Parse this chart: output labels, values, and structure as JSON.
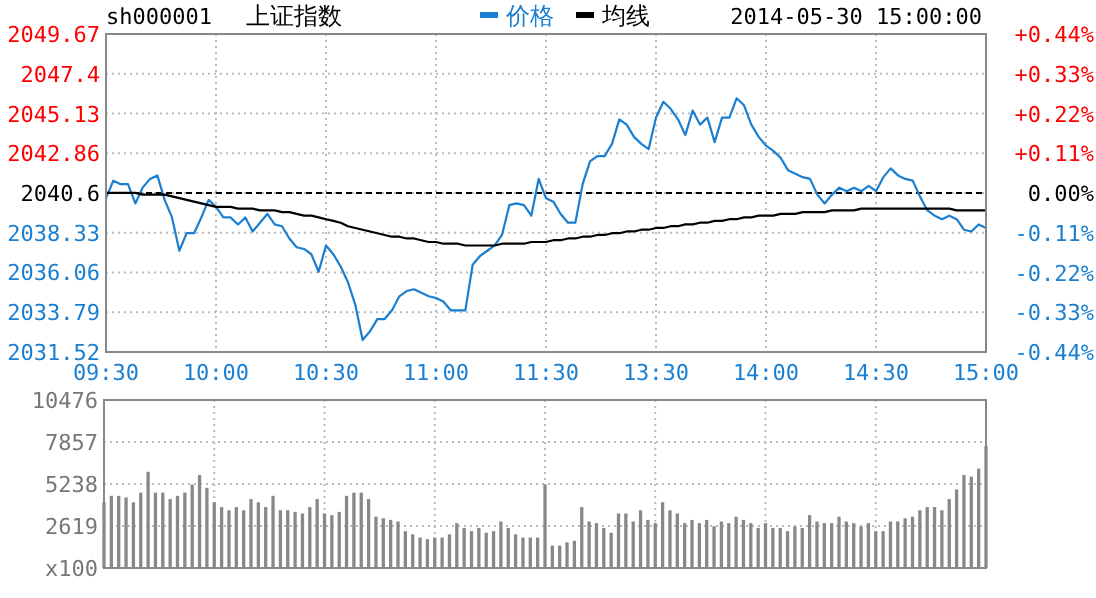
{
  "chart_data": [
    {
      "type": "line",
      "title": "上证指数",
      "subtitle": "sh000001",
      "annotations": [
        "2014-05-30 15:00:00"
      ],
      "categories": [
        "09:30",
        null,
        null,
        null,
        null,
        null,
        null,
        null,
        null,
        null,
        null,
        null,
        null,
        null,
        null,
        "10:00",
        null,
        null,
        null,
        null,
        null,
        null,
        null,
        null,
        null,
        null,
        null,
        null,
        null,
        null,
        "10:30",
        null,
        null,
        null,
        null,
        null,
        null,
        null,
        null,
        null,
        null,
        null,
        null,
        null,
        null,
        "11:00",
        null,
        null,
        null,
        null,
        null,
        null,
        null,
        null,
        null,
        null,
        null,
        null,
        null,
        null,
        "11:30",
        null,
        null,
        null,
        null,
        null,
        null,
        null,
        null,
        null,
        null,
        null,
        null,
        null,
        null,
        "13:30",
        null,
        null,
        null,
        null,
        null,
        null,
        null,
        null,
        null,
        null,
        null,
        null,
        null,
        null,
        "14:00",
        null,
        null,
        null,
        null,
        null,
        null,
        null,
        null,
        null,
        null,
        null,
        null,
        null,
        null,
        "14:30",
        null,
        null,
        null,
        null,
        null,
        null,
        null,
        null,
        null,
        null,
        null,
        null,
        null,
        null,
        "15:00"
      ],
      "series": [
        {
          "name": "价格",
          "color": "#1a7fd0",
          "values": [
            2040.3,
            2041.3,
            2041.1,
            2041.1,
            2040.0,
            2040.9,
            2041.4,
            2041.6,
            2040.2,
            2039.2,
            2037.3,
            2038.3,
            2038.3,
            2039.2,
            2040.2,
            2039.8,
            2039.2,
            2039.2,
            2038.8,
            2039.2,
            2038.4,
            2038.9,
            2039.4,
            2038.8,
            2038.7,
            2038.0,
            2037.5,
            2037.4,
            2037.1,
            2036.1,
            2037.6,
            2037.1,
            2036.4,
            2035.5,
            2034.2,
            2032.2,
            2032.7,
            2033.4,
            2033.4,
            2033.9,
            2034.7,
            2035.0,
            2035.1,
            2034.9,
            2034.7,
            2034.6,
            2034.4,
            2033.9,
            2033.9,
            2033.9,
            2036.5,
            2037.0,
            2037.3,
            2037.6,
            2038.2,
            2039.9,
            2040.0,
            2039.9,
            2039.3,
            2041.4,
            2040.3,
            2040.1,
            2039.4,
            2038.9,
            2038.9,
            2041.1,
            2042.4,
            2042.7,
            2042.7,
            2043.4,
            2044.8,
            2044.5,
            2043.8,
            2043.4,
            2043.1,
            2044.9,
            2045.8,
            2045.4,
            2044.8,
            2043.9,
            2045.3,
            2044.5,
            2044.9,
            2043.5,
            2044.9,
            2044.9,
            2046.0,
            2045.6,
            2044.5,
            2043.8,
            2043.3,
            2043.0,
            2042.6,
            2041.9,
            2041.7,
            2041.5,
            2041.4,
            2040.5,
            2040.0,
            2040.5,
            2040.9,
            2040.7,
            2040.9,
            2040.7,
            2041.0,
            2040.7,
            2041.5,
            2042.0,
            2041.6,
            2041.4,
            2041.3,
            2040.4,
            2039.6,
            2039.3,
            2039.1,
            2039.3,
            2039.1,
            2038.5,
            2038.4,
            2038.8,
            2038.6
          ]
        },
        {
          "name": "均线",
          "color": "#000000",
          "values": [
            2040.6,
            2040.6,
            2040.6,
            2040.6,
            2040.6,
            2040.5,
            2040.5,
            2040.5,
            2040.5,
            2040.4,
            2040.3,
            2040.2,
            2040.1,
            2040.0,
            2039.9,
            2039.8,
            2039.8,
            2039.8,
            2039.7,
            2039.7,
            2039.7,
            2039.6,
            2039.6,
            2039.6,
            2039.5,
            2039.5,
            2039.4,
            2039.3,
            2039.3,
            2039.2,
            2039.1,
            2039.0,
            2038.9,
            2038.7,
            2038.6,
            2038.5,
            2038.4,
            2038.3,
            2038.2,
            2038.1,
            2038.1,
            2038.0,
            2038.0,
            2037.9,
            2037.8,
            2037.8,
            2037.7,
            2037.7,
            2037.7,
            2037.6,
            2037.6,
            2037.6,
            2037.6,
            2037.6,
            2037.7,
            2037.7,
            2037.7,
            2037.7,
            2037.8,
            2037.8,
            2037.8,
            2037.9,
            2037.9,
            2038.0,
            2038.0,
            2038.1,
            2038.1,
            2038.2,
            2038.2,
            2038.3,
            2038.3,
            2038.4,
            2038.4,
            2038.5,
            2038.5,
            2038.6,
            2038.6,
            2038.7,
            2038.7,
            2038.8,
            2038.8,
            2038.9,
            2038.9,
            2039.0,
            2039.0,
            2039.1,
            2039.1,
            2039.2,
            2039.2,
            2039.3,
            2039.3,
            2039.3,
            2039.4,
            2039.4,
            2039.4,
            2039.5,
            2039.5,
            2039.5,
            2039.5,
            2039.6,
            2039.6,
            2039.6,
            2039.6,
            2039.7,
            2039.7,
            2039.7,
            2039.7,
            2039.7,
            2039.7,
            2039.7,
            2039.7,
            2039.7,
            2039.7,
            2039.7,
            2039.7,
            2039.7,
            2039.6,
            2039.6,
            2039.6,
            2039.6,
            2039.6
          ]
        }
      ],
      "ylim": [
        2031.52,
        2049.67
      ],
      "yticks": [
        2031.52,
        2033.79,
        2036.06,
        2038.33,
        2040.6,
        2042.86,
        2045.13,
        2047.4,
        2049.67
      ],
      "y2lim": [
        -0.44,
        0.44
      ],
      "y2ticks": [
        {
          "value": -0.44,
          "label": "-0.44%"
        },
        {
          "value": -0.33,
          "label": "-0.33%"
        },
        {
          "value": -0.22,
          "label": "-0.22%"
        },
        {
          "value": -0.11,
          "label": "-0.11%"
        },
        {
          "value": 0,
          "label": "0.00%"
        },
        {
          "value": 0.11,
          "label": "+0.11%"
        },
        {
          "value": 0.22,
          "label": "+0.22%"
        },
        {
          "value": 0.33,
          "label": "+0.33%"
        },
        {
          "value": 0.44,
          "label": "+0.44%"
        }
      ],
      "ref_lines": [
        {
          "axis": "y",
          "value": 2040.6,
          "color": "#000000",
          "line_style": "dashed"
        }
      ],
      "grid": true,
      "legend": "top",
      "line_style": "solid"
    },
    {
      "type": "bar",
      "color": "#888888",
      "categories": [
        null,
        null,
        null,
        null,
        null,
        null,
        null,
        null,
        null,
        null,
        null,
        null,
        null,
        null,
        null,
        null,
        null,
        null,
        null,
        null,
        null,
        null,
        null,
        null,
        null,
        null,
        null,
        null,
        null,
        null,
        null,
        null,
        null,
        null,
        null,
        null,
        null,
        null,
        null,
        null,
        null,
        null,
        null,
        null,
        null,
        null,
        null,
        null,
        null,
        null,
        null,
        null,
        null,
        null,
        null,
        null,
        null,
        null,
        null,
        null,
        null,
        null,
        null,
        null,
        null,
        null,
        null,
        null,
        null,
        null,
        null,
        null,
        null,
        null,
        null,
        null,
        null,
        null,
        null,
        null,
        null,
        null,
        null,
        null,
        null,
        null,
        null,
        null,
        null,
        null,
        null,
        null,
        null,
        null,
        null,
        null,
        null,
        null,
        null,
        null,
        null,
        null,
        null,
        null,
        null,
        null,
        null,
        null,
        null,
        null,
        null,
        null,
        null,
        null,
        null,
        null,
        null,
        null,
        null,
        null,
        null
      ],
      "values": [
        4100,
        4500,
        4500,
        4400,
        4100,
        4700,
        6000,
        4700,
        4700,
        4300,
        4500,
        4700,
        5200,
        5800,
        5000,
        4100,
        3800,
        3600,
        3800,
        3600,
        4300,
        4100,
        3800,
        4500,
        3600,
        3600,
        3500,
        3400,
        3800,
        4300,
        3400,
        3300,
        3500,
        4500,
        4700,
        4700,
        4300,
        3200,
        3100,
        3000,
        2900,
        2300,
        2100,
        1900,
        1800,
        1900,
        1900,
        2100,
        2800,
        2500,
        2300,
        2500,
        2200,
        2300,
        2900,
        2500,
        2100,
        1900,
        1900,
        1900,
        5200,
        1400,
        1400,
        1600,
        1700,
        3800,
        2900,
        2800,
        2500,
        2200,
        3400,
        3400,
        2900,
        3600,
        3000,
        2800,
        4100,
        3600,
        3400,
        2800,
        3000,
        2800,
        3000,
        2600,
        2900,
        2800,
        3200,
        3000,
        2800,
        2500,
        2800,
        2500,
        2500,
        2300,
        2600,
        2500,
        3300,
        2900,
        2800,
        2800,
        3200,
        2900,
        2800,
        2600,
        2800,
        2300,
        2300,
        2900,
        2900,
        3100,
        3200,
        3600,
        3800,
        3800,
        3600,
        4300,
        4900,
        5800,
        5700,
        6200,
        7600
      ],
      "ylim": [
        0,
        10476
      ],
      "yticks": [
        {
          "value": 0,
          "label": "x100"
        },
        2619,
        5238,
        7857,
        10476
      ],
      "grid": true,
      "tick_labels": "y"
    }
  ]
}
